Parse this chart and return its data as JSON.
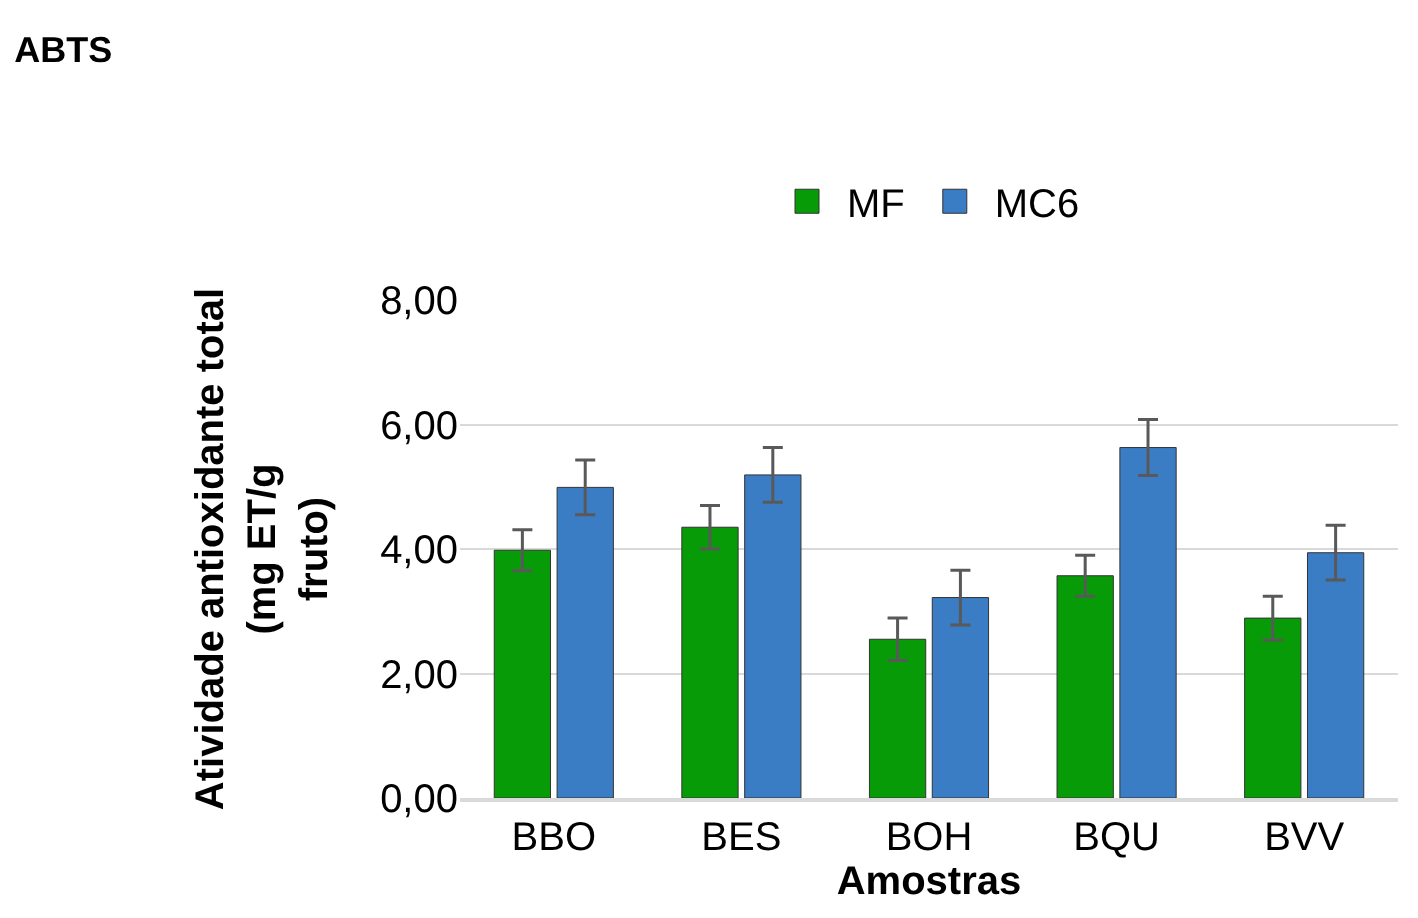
{
  "chart_data": {
    "type": "bar",
    "title": "ABTS",
    "xlabel": "Amostras",
    "ylabel": "Atividade antioxidante total\n(mg ET/g\nfruto)",
    "categories": [
      "BBO",
      "BES",
      "BOH",
      "BQU",
      "BVV"
    ],
    "series": [
      {
        "name": "MF",
        "color": "#079c07",
        "values": [
          3.98,
          4.35,
          2.55,
          3.57,
          2.89
        ],
        "errors": [
          0.33,
          0.35,
          0.34,
          0.33,
          0.35
        ]
      },
      {
        "name": "MC6",
        "color": "#3a7dc4",
        "values": [
          4.99,
          5.19,
          3.22,
          5.63,
          3.94
        ],
        "errors": [
          0.44,
          0.44,
          0.44,
          0.45,
          0.44
        ]
      }
    ],
    "ylim": [
      0,
      8
    ],
    "yticks": [
      {
        "value": 0,
        "label": "0,00"
      },
      {
        "value": 2,
        "label": "2,00"
      },
      {
        "value": 4,
        "label": "4,00"
      },
      {
        "value": 6,
        "label": "6,00"
      },
      {
        "value": 8,
        "label": "8,00"
      }
    ],
    "grid": "y",
    "legend": "top"
  }
}
